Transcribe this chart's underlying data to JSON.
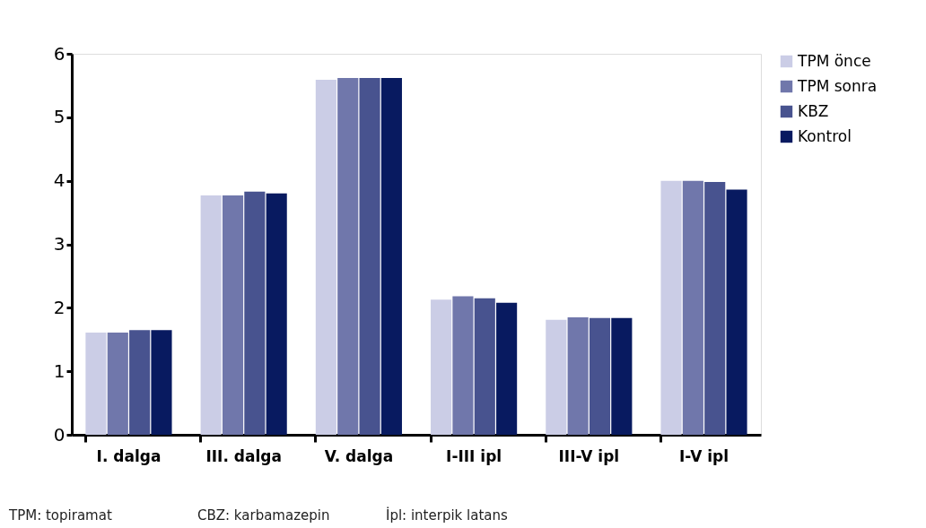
{
  "chart_data": {
    "type": "bar",
    "categories": [
      "I. dalga",
      "III. dalga",
      "V. dalga",
      "I-III ipl",
      "III-V ipl",
      "I-V ipl"
    ],
    "series": [
      {
        "name": "TPM önce",
        "color": "#cbcde6",
        "values": [
          1.61,
          3.77,
          5.59,
          2.13,
          1.81,
          4.0
        ]
      },
      {
        "name": "TPM sonra",
        "color": "#7077ab",
        "values": [
          1.61,
          3.77,
          5.62,
          2.18,
          1.85,
          4.0
        ]
      },
      {
        "name": "KBZ",
        "color": "#48538f",
        "values": [
          1.65,
          3.83,
          5.62,
          2.15,
          1.84,
          3.98
        ]
      },
      {
        "name": "Kontrol",
        "color": "#081a60",
        "values": [
          1.65,
          3.8,
          5.62,
          2.08,
          1.84,
          3.86
        ]
      }
    ],
    "ylim": [
      0,
      6
    ],
    "yticks": [
      0,
      1,
      2,
      3,
      4,
      5,
      6
    ],
    "grid": false,
    "legend": "right",
    "annotations": [
      "TPM: topiramat",
      "CBZ: karbamazepin",
      "İpl: interpik latans"
    ]
  }
}
